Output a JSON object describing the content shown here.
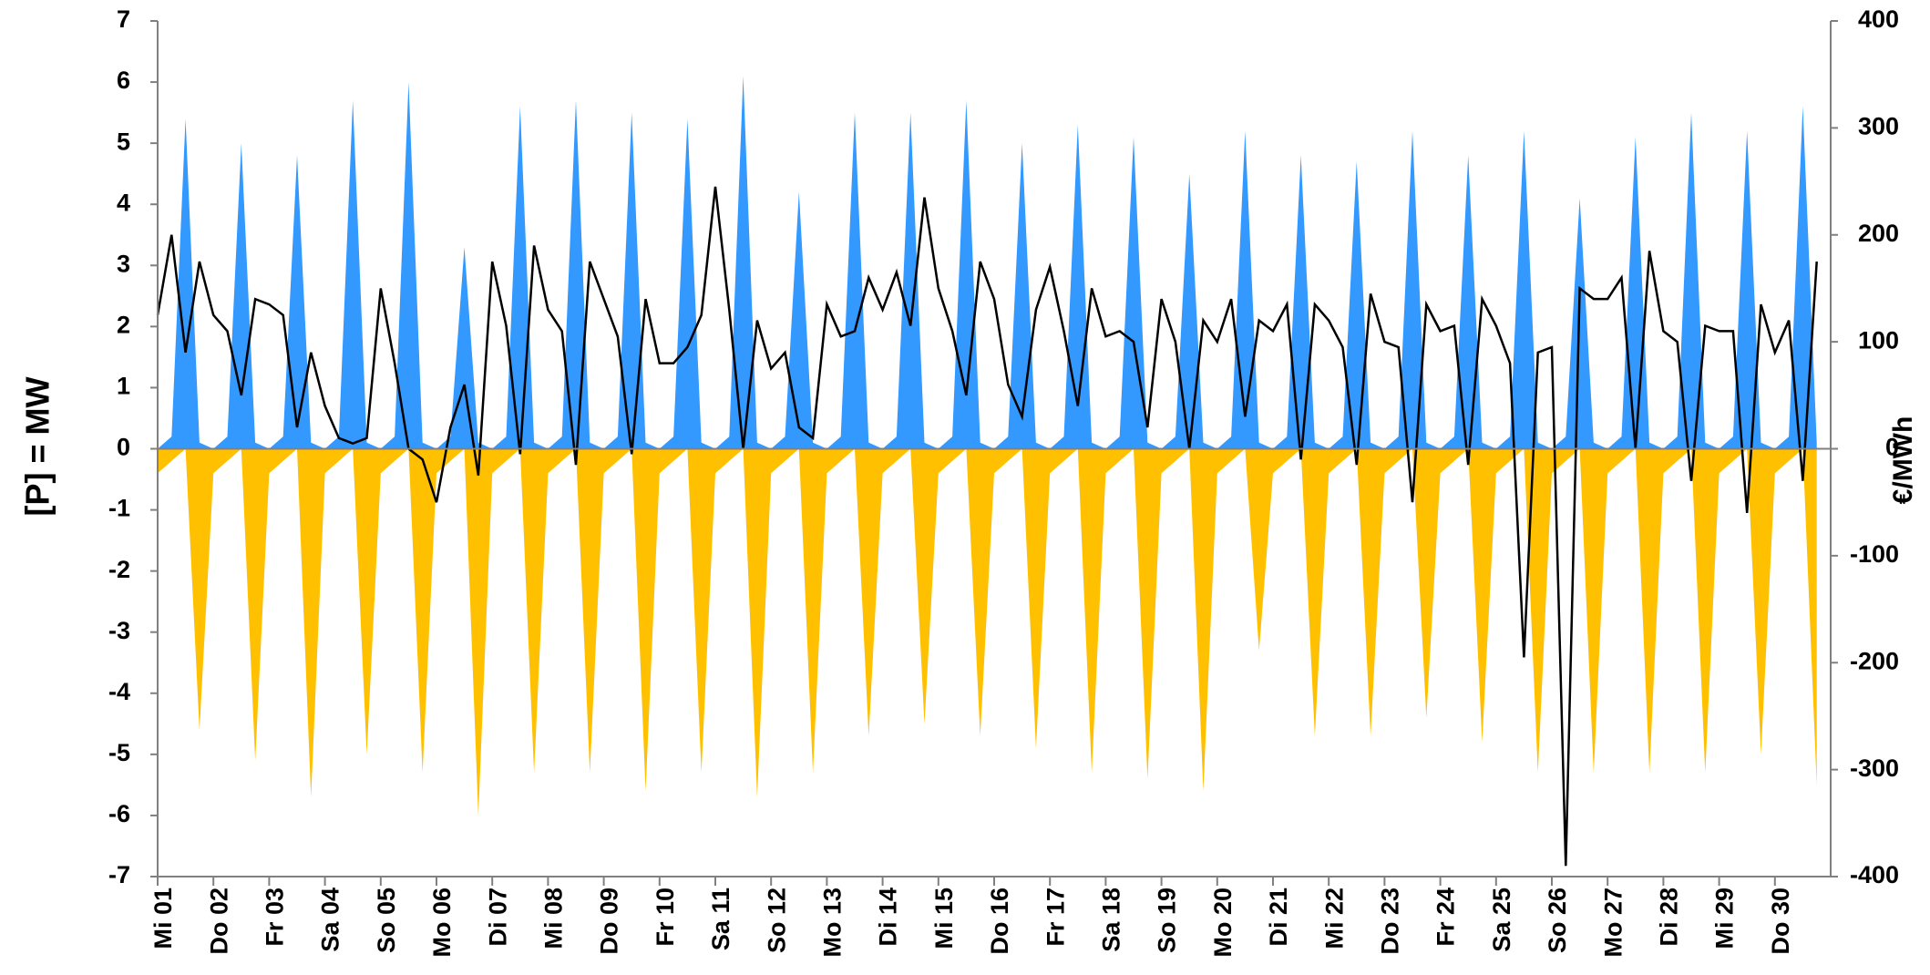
{
  "chart_data": {
    "type": "area",
    "y_label": "[P]  = MW",
    "y2_label": "€/MWh",
    "categories": [
      "Mi 01",
      null,
      null,
      null,
      "Do 02",
      null,
      null,
      null,
      "Fr 03",
      null,
      null,
      null,
      "Sa 04",
      null,
      null,
      null,
      "So 05",
      null,
      null,
      null,
      "Mo 06",
      null,
      null,
      null,
      "Di 07",
      null,
      null,
      null,
      "Mi 08",
      null,
      null,
      null,
      "Do 09",
      null,
      null,
      null,
      "Fr 10",
      null,
      null,
      null,
      "Sa 11",
      null,
      null,
      null,
      "So 12",
      null,
      null,
      null,
      "Mo 13",
      null,
      null,
      null,
      "Di 14",
      null,
      null,
      null,
      "Mi 15",
      null,
      null,
      null,
      "Do 16",
      null,
      null,
      null,
      "Fr 17",
      null,
      null,
      null,
      "Sa 18",
      null,
      null,
      null,
      "So 19",
      null,
      null,
      null,
      "Mo 20",
      null,
      null,
      null,
      "Di 21",
      null,
      null,
      null,
      "Mi 22",
      null,
      null,
      null,
      "Do 23",
      null,
      null,
      null,
      "Fr 24",
      null,
      null,
      null,
      "Sa 25",
      null,
      null,
      null,
      "So 26",
      null,
      null,
      null,
      "Mo 27",
      null,
      null,
      null,
      "Di 28",
      null,
      null,
      null,
      "Mi 29",
      null,
      null,
      null,
      "Do 30",
      null,
      null,
      null
    ],
    "series": [
      {
        "type": "area",
        "color": "#3399ff",
        "values": [
          0,
          0.2,
          5.4,
          0.1,
          0,
          0.2,
          5.0,
          0.1,
          0,
          0.2,
          4.8,
          0.1,
          0,
          0.2,
          5.7,
          0.1,
          0,
          0.2,
          6.0,
          0.1,
          0,
          0.2,
          3.3,
          0.1,
          0,
          0.2,
          5.6,
          0.1,
          0,
          0.2,
          5.7,
          0.1,
          0,
          0.2,
          5.5,
          0.1,
          0,
          0.2,
          5.4,
          0.1,
          0,
          0.2,
          6.1,
          0.1,
          0,
          0.2,
          4.2,
          0.1,
          0,
          0.2,
          5.5,
          0.1,
          0,
          0.2,
          5.5,
          0.1,
          0,
          0.2,
          5.7,
          0.1,
          0,
          0.2,
          5.0,
          0.1,
          0,
          0.2,
          5.3,
          0.1,
          0,
          0.2,
          5.1,
          0.1,
          0,
          0.2,
          4.5,
          0.1,
          0,
          0.2,
          5.2,
          0.1,
          0,
          0.2,
          4.8,
          0.1,
          0,
          0.2,
          4.7,
          0.1,
          0,
          0.2,
          5.2,
          0.1,
          0,
          0.2,
          4.8,
          0.1,
          0,
          0.2,
          5.2,
          0.1,
          0,
          0.2,
          4.1,
          0.1,
          0,
          0.2,
          5.1,
          0.1,
          0,
          0.2,
          5.5,
          0.1,
          0,
          0.2,
          5.2,
          0.1,
          0,
          0.2,
          5.6,
          0.1
        ]
      },
      {
        "type": "area",
        "color": "#ffc000",
        "values": [
          -0.4,
          -0.2,
          0,
          -4.6,
          -0.4,
          -0.2,
          0,
          -5.1,
          -0.4,
          -0.2,
          0,
          -5.7,
          -0.4,
          -0.2,
          0,
          -5.0,
          -0.4,
          -0.2,
          0,
          -5.3,
          -0.4,
          -0.2,
          0,
          -6.0,
          -0.4,
          -0.2,
          0,
          -5.3,
          -0.4,
          -0.2,
          0,
          -5.3,
          -0.4,
          -0.2,
          0,
          -5.6,
          -0.4,
          -0.2,
          0,
          -5.3,
          -0.4,
          -0.2,
          0,
          -5.7,
          -0.4,
          -0.2,
          0,
          -5.3,
          -0.4,
          -0.2,
          0,
          -4.7,
          -0.4,
          -0.2,
          0,
          -4.5,
          -0.4,
          -0.2,
          0,
          -4.7,
          -0.4,
          -0.2,
          0,
          -4.9,
          -0.4,
          -0.2,
          0,
          -5.3,
          -0.4,
          -0.2,
          0,
          -5.4,
          -0.4,
          -0.2,
          0,
          -5.6,
          -0.4,
          -0.2,
          0,
          -3.3,
          -0.4,
          -0.2,
          0,
          -4.7,
          -0.4,
          -0.2,
          0,
          -4.7,
          -0.4,
          -0.2,
          0,
          -4.4,
          -0.4,
          -0.2,
          0,
          -4.8,
          -0.4,
          -0.2,
          0,
          -5.3,
          -0.4,
          -0.2,
          0,
          -5.3,
          -0.4,
          -0.2,
          0,
          -5.3,
          -0.4,
          -0.2,
          0,
          -5.3,
          -0.4,
          -0.2,
          0,
          -5.0,
          -0.4,
          -0.2,
          0,
          -5.5
        ]
      },
      {
        "type": "line",
        "axis": "y2",
        "color": "#000000",
        "values": [
          125,
          200,
          90,
          175,
          125,
          110,
          50,
          140,
          135,
          125,
          20,
          90,
          40,
          10,
          5,
          10,
          150,
          80,
          0,
          -10,
          -50,
          20,
          60,
          -25,
          175,
          115,
          -5,
          190,
          130,
          110,
          -15,
          175,
          140,
          105,
          -5,
          140,
          80,
          80,
          95,
          125,
          245,
          130,
          0,
          120,
          75,
          90,
          20,
          10,
          135,
          105,
          110,
          160,
          130,
          165,
          115,
          235,
          150,
          110,
          50,
          175,
          140,
          60,
          30,
          130,
          170,
          110,
          40,
          150,
          105,
          110,
          100,
          20,
          140,
          100,
          0,
          120,
          100,
          140,
          30,
          120,
          110,
          135,
          -10,
          135,
          120,
          95,
          -15,
          145,
          100,
          95,
          -50,
          135,
          110,
          115,
          -15,
          140,
          115,
          80,
          -195,
          90,
          95,
          -390,
          150,
          140,
          140,
          160,
          0,
          185,
          110,
          100,
          -30,
          115,
          110,
          110,
          -60,
          135,
          90,
          120,
          -30,
          175
        ]
      }
    ],
    "ylim": [
      -7,
      7
    ],
    "yticks": [
      -7,
      -6,
      -5,
      -4,
      -3,
      -2,
      -1,
      0,
      1,
      2,
      3,
      4,
      5,
      6,
      7
    ],
    "y2lim": [
      -400,
      400
    ],
    "y2ticks": [
      -400,
      -300,
      -200,
      -100,
      0,
      100,
      200,
      300,
      400
    ],
    "negative_tick_color": "#ff0000",
    "grid": false
  }
}
